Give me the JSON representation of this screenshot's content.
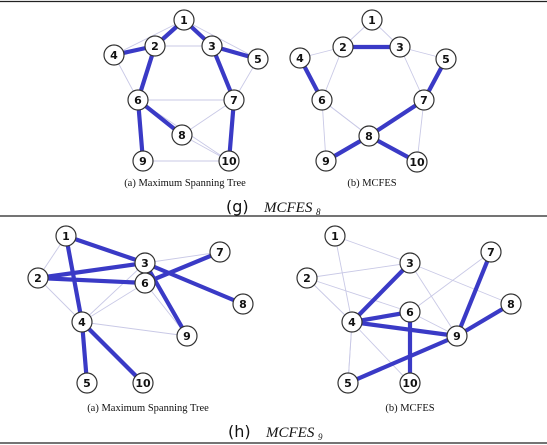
{
  "figures": [
    {
      "id": "g",
      "caption_letter": "(g)",
      "caption_main": "MCFES",
      "caption_sub": "8",
      "nodes": [
        "1",
        "2",
        "3",
        "4",
        "5",
        "6",
        "7",
        "8",
        "9",
        "10"
      ],
      "panels": [
        {
          "label": "(a) Maximum Spanning Tree",
          "thin_edges": [
            [
              "4",
              "1"
            ],
            [
              "4",
              "6"
            ],
            [
              "2",
              "3"
            ],
            [
              "1",
              "5"
            ],
            [
              "5",
              "7"
            ],
            [
              "6",
              "7"
            ],
            [
              "6",
              "10"
            ],
            [
              "9",
              "10"
            ],
            [
              "8",
              "7"
            ],
            [
              "8",
              "10"
            ],
            [
              "2",
              "6"
            ]
          ],
          "bold_edges": [
            [
              "1",
              "2"
            ],
            [
              "1",
              "3"
            ],
            [
              "4",
              "2"
            ],
            [
              "2",
              "6"
            ],
            [
              "3",
              "5"
            ],
            [
              "3",
              "7"
            ],
            [
              "6",
              "8"
            ],
            [
              "6",
              "9"
            ],
            [
              "7",
              "10"
            ]
          ]
        },
        {
          "label": "(b) MCFES",
          "thin_edges": [
            [
              "1",
              "2"
            ],
            [
              "1",
              "3"
            ],
            [
              "4",
              "2"
            ],
            [
              "2",
              "6"
            ],
            [
              "3",
              "5"
            ],
            [
              "3",
              "7"
            ],
            [
              "6",
              "8"
            ],
            [
              "6",
              "9"
            ],
            [
              "7",
              "10"
            ],
            [
              "5",
              "7"
            ],
            [
              "8",
              "6"
            ],
            [
              "8",
              "7"
            ]
          ],
          "bold_edges": [
            [
              "2",
              "3"
            ],
            [
              "4",
              "6"
            ],
            [
              "5",
              "7"
            ],
            [
              "7",
              "8"
            ],
            [
              "8",
              "9"
            ],
            [
              "8",
              "10"
            ]
          ]
        }
      ]
    },
    {
      "id": "h",
      "caption_letter": "(h)",
      "caption_main": "MCFES",
      "caption_sub": "9",
      "nodes": [
        "1",
        "2",
        "3",
        "4",
        "5",
        "6",
        "7",
        "8",
        "9",
        "10"
      ],
      "panels": [
        {
          "label": "(a) Maximum Spanning Tree",
          "thin_edges": [
            [
              "4",
              "3"
            ],
            [
              "6",
              "9"
            ],
            [
              "4",
              "9"
            ],
            [
              "5",
              "4"
            ],
            [
              "4",
              "6"
            ],
            [
              "3",
              "7"
            ],
            [
              "2",
              "4"
            ],
            [
              "1",
              "2"
            ]
          ],
          "bold_edges": [
            [
              "1",
              "3"
            ],
            [
              "1",
              "4"
            ],
            [
              "2",
              "3"
            ],
            [
              "2",
              "6"
            ],
            [
              "3",
              "8"
            ],
            [
              "3",
              "9"
            ],
            [
              "6",
              "7"
            ],
            [
              "4",
              "5"
            ],
            [
              "4",
              "10"
            ]
          ]
        },
        {
          "label": "(b) MCFES",
          "thin_edges": [
            [
              "1",
              "3"
            ],
            [
              "1",
              "4"
            ],
            [
              "2",
              "3"
            ],
            [
              "2",
              "6"
            ],
            [
              "3",
              "8"
            ],
            [
              "3",
              "9"
            ],
            [
              "6",
              "7"
            ],
            [
              "4",
              "5"
            ],
            [
              "4",
              "10"
            ],
            [
              "2",
              "4"
            ],
            [
              "5",
              "4"
            ],
            [
              "6",
              "9"
            ]
          ],
          "bold_edges": [
            [
              "3",
              "4"
            ],
            [
              "4",
              "6"
            ],
            [
              "4",
              "9"
            ],
            [
              "6",
              "10"
            ],
            [
              "7",
              "9"
            ],
            [
              "8",
              "9"
            ],
            [
              "5",
              "9"
            ]
          ]
        }
      ]
    }
  ]
}
